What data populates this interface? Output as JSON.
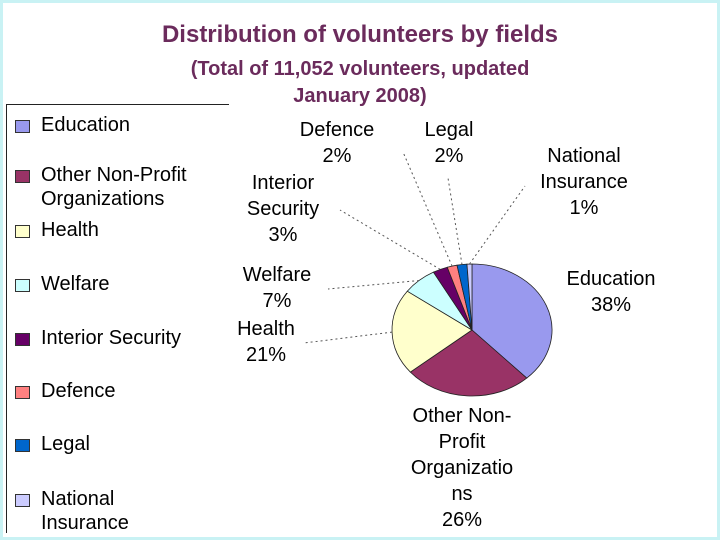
{
  "title": "Distribution of volunteers by fields",
  "subtitle_line1": "(Total of 11,052 volunteers, updated",
  "subtitle_line2": "January 2008)",
  "chart_data": {
    "type": "pie",
    "title": "Distribution of volunteers by fields",
    "subtitle": "(Total of 11,052 volunteers, updated January 2008)",
    "legend_position": "left",
    "slices": [
      {
        "name": "Education",
        "value": 38,
        "label": [
          "Education",
          "38%"
        ],
        "color": "#9999ee"
      },
      {
        "name": "Other Non-Profit Organizations",
        "value": 26,
        "label": [
          "Other Non-",
          "Profit",
          "Organizatio",
          "ns",
          "26%"
        ],
        "color": "#993366"
      },
      {
        "name": "Health",
        "value": 21,
        "label": [
          "Health",
          "21%"
        ],
        "color": "#ffffcc"
      },
      {
        "name": "Welfare",
        "value": 7,
        "label": [
          "Welfare",
          "7%"
        ],
        "color": "#ccffff"
      },
      {
        "name": "Interior Security",
        "value": 3,
        "label": [
          "Interior",
          "Security",
          "3%"
        ],
        "color": "#660066"
      },
      {
        "name": "Defence",
        "value": 2,
        "label": [
          "Defence",
          "2%"
        ],
        "color": "#ff8080"
      },
      {
        "name": "Legal",
        "value": 2,
        "label": [
          "Legal",
          "2%"
        ],
        "color": "#0066cc"
      },
      {
        "name": "National Insurance",
        "value": 1,
        "label": [
          "National",
          "Insurance",
          "1%"
        ],
        "color": "#ccccff"
      }
    ],
    "legend": [
      [
        "Education"
      ],
      [
        "Other Non-Profit",
        "Organizations"
      ],
      [
        "Health"
      ],
      [
        "Welfare"
      ],
      [
        "Interior Security"
      ],
      [
        "Defence"
      ],
      [
        "Legal"
      ],
      [
        "National",
        "Insurance"
      ]
    ]
  }
}
